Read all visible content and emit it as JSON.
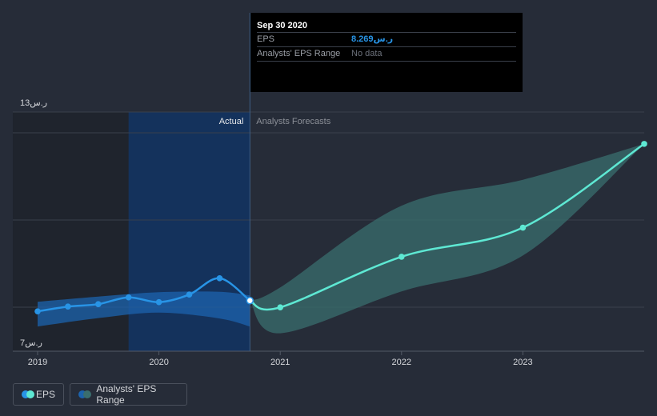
{
  "tooltip": {
    "date": "Sep 30 2020",
    "eps_label": "EPS",
    "eps_value": "8.269ر.س",
    "range_label": "Analysts' EPS Range",
    "range_value": "No data"
  },
  "legend": {
    "eps_label": "EPS",
    "range_label": "Analysts' EPS Range"
  },
  "colors": {
    "background": "#262c38",
    "eps_actual": "#2894e6",
    "eps_forecast": "#5ee8d3",
    "actual_band": "#16477a",
    "forecast_band": "#3a6e6e"
  },
  "chart_data": {
    "type": "line",
    "title": "",
    "xlabel": "",
    "ylabel": "",
    "ylim": [
      7,
      13
    ],
    "y_tick_labels": [
      "7ر.س",
      "13ر.س"
    ],
    "x_tick_labels": [
      "2019",
      "2020",
      "2021",
      "2022",
      "2023"
    ],
    "section_labels": {
      "actual": "Actual",
      "forecast": "Analysts Forecasts"
    },
    "actual_end_x": 2020.75,
    "series": [
      {
        "name": "EPS",
        "kind": "actual",
        "x": [
          2019.0,
          2019.25,
          2019.5,
          2019.75,
          2020.0,
          2020.25,
          2020.5,
          2020.75
        ],
        "y": [
          8.0,
          8.12,
          8.18,
          8.35,
          8.23,
          8.42,
          8.83,
          8.269
        ]
      },
      {
        "name": "EPS Forecast",
        "kind": "forecast",
        "x": [
          2020.75,
          2021.0,
          2022.0,
          2023.0,
          2024.0
        ],
        "y": [
          8.269,
          8.1,
          9.37,
          10.1,
          12.2
        ]
      },
      {
        "name": "Analysts' EPS Range",
        "kind": "forecast-range",
        "x": [
          2020.75,
          2021.0,
          2022.0,
          2023.0,
          2024.0
        ],
        "low": [
          8.269,
          7.45,
          8.5,
          9.4,
          12.2
        ],
        "high": [
          8.269,
          8.6,
          10.65,
          11.3,
          12.2
        ]
      },
      {
        "name": "Actual EPS Range",
        "kind": "actual-range",
        "x": [
          2019.0,
          2019.5,
          2020.0,
          2020.5,
          2020.75
        ],
        "low": [
          7.62,
          7.83,
          7.97,
          7.82,
          7.62
        ],
        "high": [
          8.24,
          8.37,
          8.48,
          8.49,
          8.4
        ]
      }
    ]
  }
}
